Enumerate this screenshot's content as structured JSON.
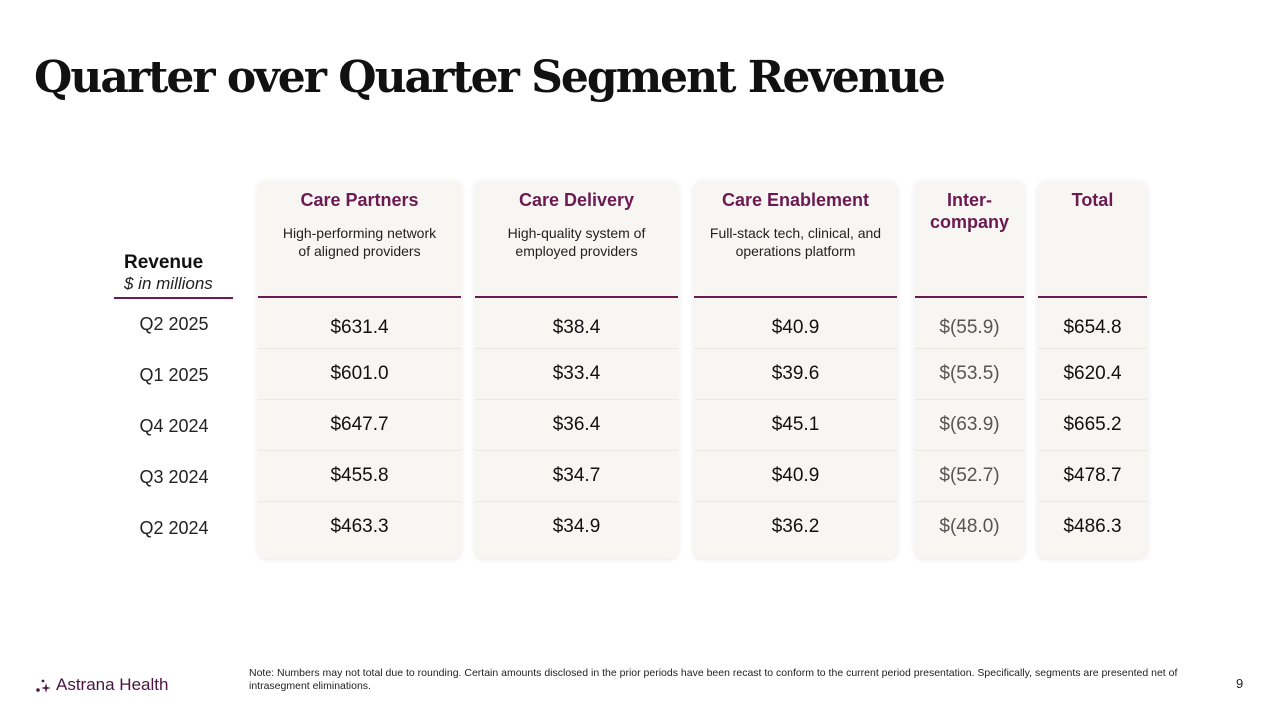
{
  "title": "Quarter over Quarter Segment Revenue",
  "revenue_header": {
    "label": "Revenue",
    "unit": "$ in millions"
  },
  "periods": [
    "Q2 2025",
    "Q1 2025",
    "Q4 2024",
    "Q3 2024",
    "Q2  2024"
  ],
  "columns": [
    {
      "name": "Care Partners",
      "desc_line1": "High-performing network",
      "desc_line2": "of aligned providers",
      "values": [
        "$631.4",
        "$601.0",
        "$647.7",
        "$455.8",
        "$463.3"
      ]
    },
    {
      "name": "Care Delivery",
      "desc_line1": "High-quality system of",
      "desc_line2": "employed providers",
      "values": [
        "$38.4",
        "$33.4",
        "$36.4",
        "$34.7",
        "$34.9"
      ]
    },
    {
      "name": "Care Enablement",
      "desc_line1": "Full-stack tech, clinical, and",
      "desc_line2": "operations platform",
      "values": [
        "$40.9",
        "$39.6",
        "$45.1",
        "$40.9",
        "$36.2"
      ]
    },
    {
      "name_line1": "Inter-",
      "name_line2": "company",
      "values": [
        "$(55.9)",
        "$(53.5)",
        "$(63.9)",
        "$(52.7)",
        "$(48.0)"
      ]
    },
    {
      "name": "Total",
      "values": [
        "$654.8",
        "$620.4",
        "$665.2",
        "$478.7",
        "$486.3"
      ]
    }
  ],
  "footer": {
    "logo_text": "Astrana Health",
    "note": "Note: Numbers may not total due to rounding. Certain amounts disclosed in the prior periods have been recast to conform to the current period presentation. Specifically, segments are presented net of intrasegment eliminations.",
    "page_number": "9"
  },
  "colors": {
    "accent": "#6b1a52",
    "card_bg": "#f8f6f2"
  }
}
